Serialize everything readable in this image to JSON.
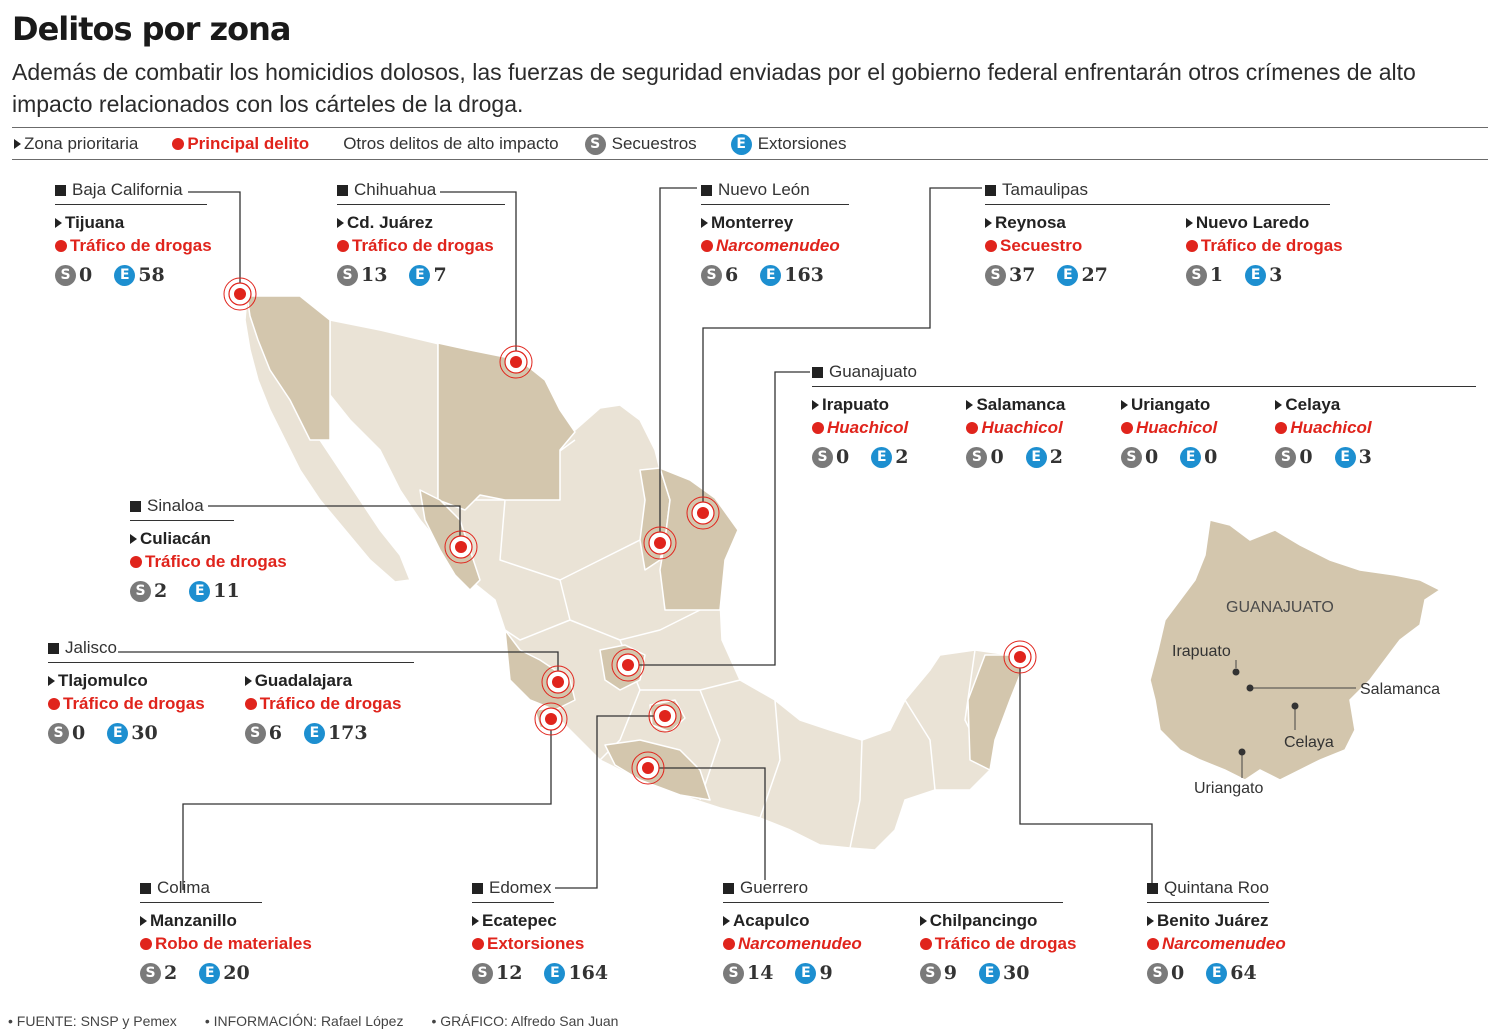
{
  "title": "Delitos por zona",
  "subtitle": "Además de combatir los homicidios dolosos, las fuerzas de seguridad enviadas por el gobierno federal enfrentarán otros crímenes de alto impacto relacionados con los cárteles de la droga.",
  "legend": {
    "zona": "Zona prioritaria",
    "principal": "Principal delito",
    "otros": "Otros delitos de alto impacto",
    "s_letter": "S",
    "secuestros": "Secuestros",
    "e_letter": "E",
    "extorsiones": "Extorsiones"
  },
  "colors": {
    "accent_red": "#e0241c",
    "s_badge": "#7a7a7a",
    "e_badge": "#1d8fd0",
    "map_light": "#eae3d6",
    "map_priority": "#d3c6ad"
  },
  "inset": {
    "title": "GUANAJUATO",
    "cities": [
      "Irapuato",
      "Salamanca",
      "Celaya",
      "Uriangato"
    ]
  },
  "zones": [
    {
      "id": "baja",
      "state": "Baja California",
      "cities": [
        {
          "name": "Tijuana",
          "crime": "Tráfico de drogas",
          "italic": false,
          "s": "0",
          "e": "58"
        }
      ]
    },
    {
      "id": "chih",
      "state": "Chihuahua",
      "cities": [
        {
          "name": "Cd. Juárez",
          "crime": "Tráfico de drogas",
          "italic": false,
          "s": "13",
          "e": "7"
        }
      ]
    },
    {
      "id": "nl",
      "state": "Nuevo León",
      "cities": [
        {
          "name": "Monterrey",
          "crime": "Narcomenudeo",
          "italic": true,
          "s": "6",
          "e": "163"
        }
      ]
    },
    {
      "id": "tam",
      "state": "Tamaulipas",
      "cities": [
        {
          "name": "Reynosa",
          "crime": "Secuestro",
          "italic": false,
          "s": "37",
          "e": "27"
        },
        {
          "name": "Nuevo Laredo",
          "crime": "Tráfico de drogas",
          "italic": false,
          "s": "1",
          "e": "3"
        }
      ]
    },
    {
      "id": "gto",
      "state": "Guanajuato",
      "cities": [
        {
          "name": "Irapuato",
          "crime": "Huachicol",
          "italic": true,
          "s": "0",
          "e": "2"
        },
        {
          "name": "Salamanca",
          "crime": "Huachicol",
          "italic": true,
          "s": "0",
          "e": "2"
        },
        {
          "name": "Uriangato",
          "crime": "Huachicol",
          "italic": true,
          "s": "0",
          "e": "0"
        },
        {
          "name": "Celaya",
          "crime": "Huachicol",
          "italic": true,
          "s": "0",
          "e": "3"
        }
      ]
    },
    {
      "id": "sin",
      "state": "Sinaloa",
      "cities": [
        {
          "name": "Culiacán",
          "crime": "Tráfico de drogas",
          "italic": false,
          "s": "2",
          "e": "11"
        }
      ]
    },
    {
      "id": "jal",
      "state": "Jalisco",
      "cities": [
        {
          "name": "Tlajomulco",
          "crime": "Tráfico de drogas",
          "italic": false,
          "s": "0",
          "e": "30"
        },
        {
          "name": "Guadalajara",
          "crime": "Tráfico de drogas",
          "italic": false,
          "s": "6",
          "e": "173"
        }
      ]
    },
    {
      "id": "col",
      "state": "Colima",
      "cities": [
        {
          "name": "Manzanillo",
          "crime": "Robo de materiales",
          "italic": false,
          "s": "2",
          "e": "20"
        }
      ]
    },
    {
      "id": "edo",
      "state": "Edomex",
      "cities": [
        {
          "name": "Ecatepec",
          "crime": "Extorsiones",
          "italic": false,
          "s": "12",
          "e": "164"
        }
      ]
    },
    {
      "id": "gro",
      "state": "Guerrero",
      "cities": [
        {
          "name": "Acapulco",
          "crime": "Narcomenudeo",
          "italic": true,
          "s": "14",
          "e": "9"
        },
        {
          "name": "Chilpancingo",
          "crime": "Tráfico de drogas",
          "italic": false,
          "s": "9",
          "e": "30"
        }
      ]
    },
    {
      "id": "qroo",
      "state": "Quintana Roo",
      "cities": [
        {
          "name": "Benito Juárez",
          "crime": "Narcomenudeo",
          "italic": true,
          "s": "0",
          "e": "64"
        }
      ]
    }
  ],
  "footer": {
    "fuente": "FUENTE: SNSP y Pemex",
    "informacion": "INFORMACIÓN: Rafael López",
    "grafico": "GRÁFICO: Alfredo San Juan"
  }
}
